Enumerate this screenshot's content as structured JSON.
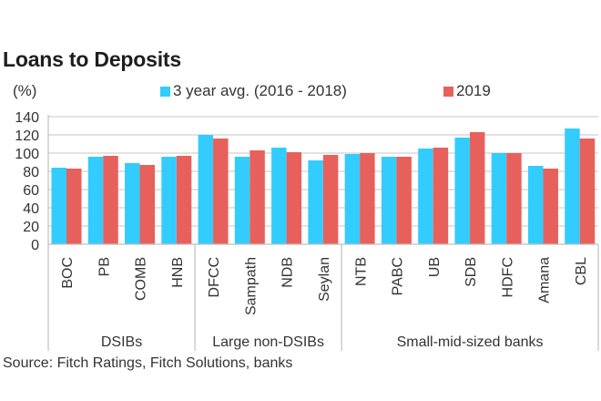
{
  "colors": {
    "series_avg": "#33CCFF",
    "series_2019": "#E8605C",
    "grid": "#d9d9d9",
    "axis": "#bfbfbf"
  },
  "chart_data": {
    "type": "bar",
    "title": "Loans to Deposits",
    "ylabel": "(%)",
    "xlabel": "",
    "ylim": [
      0,
      140
    ],
    "yticks": [
      0,
      20,
      40,
      60,
      80,
      100,
      120,
      140
    ],
    "grid": true,
    "legend_position": "top",
    "categories": [
      "BOC",
      "PB",
      "COMB",
      "HNB",
      "DFCC",
      "Sampath",
      "NDB",
      "Seylan",
      "NTB",
      "PABC",
      "UB",
      "SDB",
      "HDFC",
      "Amana",
      "CBL"
    ],
    "groups": [
      {
        "label": "DSIBs",
        "count": 4
      },
      {
        "label": "Large non-DSIBs",
        "count": 4
      },
      {
        "label": "Small-mid-sized banks",
        "count": 7
      }
    ],
    "series": [
      {
        "name": "3 year avg. (2016 - 2018)",
        "color_key": "series_avg",
        "values": [
          84,
          96,
          89,
          96,
          120,
          96,
          106,
          92,
          99,
          96,
          105,
          117,
          100,
          86,
          127
        ]
      },
      {
        "name": "2019",
        "color_key": "series_2019",
        "values": [
          83,
          97,
          87,
          97,
          116,
          103,
          101,
          98,
          100,
          96,
          106,
          123,
          100,
          83,
          116
        ]
      }
    ],
    "source": "Source: Fitch Ratings, Fitch Solutions, banks"
  }
}
